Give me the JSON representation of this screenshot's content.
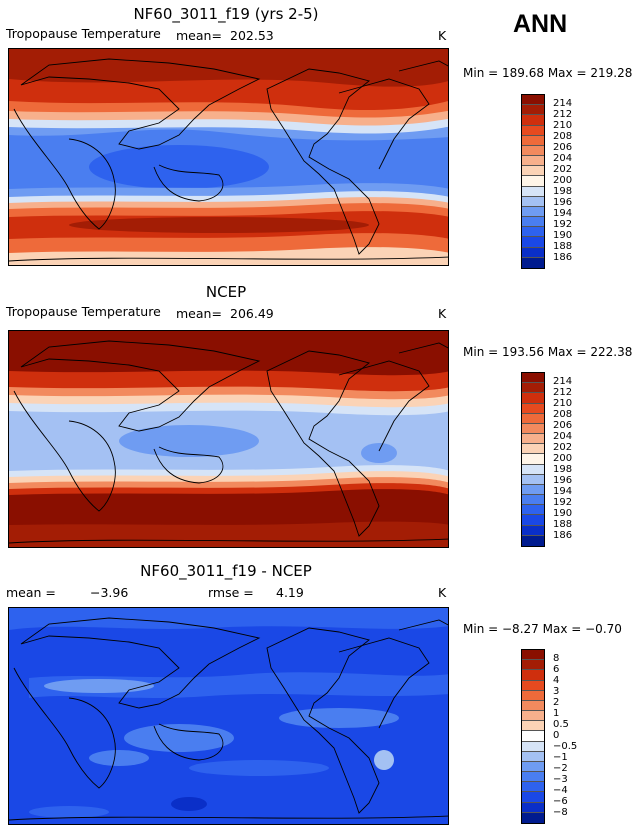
{
  "season": "ANN",
  "colors": {
    "absolute": [
      "#001b8f",
      "#0a2fc8",
      "#1a48e6",
      "#2e62ee",
      "#4a7ef0",
      "#6f9cf2",
      "#a4c1f3",
      "#d6e4f7",
      "#fff5e8",
      "#fbd3b6",
      "#f7b08c",
      "#f28a5e",
      "#ee6a3a",
      "#e64a1f",
      "#cf2f0d",
      "#a31d05",
      "#8a0f00"
    ],
    "difference": [
      "#001b8f",
      "#0a2fc8",
      "#1a48e6",
      "#2e62ee",
      "#4a7ef0",
      "#6f9cf2",
      "#a4c1f3",
      "#d6e4f7",
      "#ffffff",
      "#fbd3b6",
      "#f7b08c",
      "#f28a5e",
      "#ee6a3a",
      "#e64a1f",
      "#cf2f0d",
      "#a31d05",
      "#8a0f00"
    ]
  },
  "chart_data": [
    {
      "type": "heatmap",
      "title": "NF60_3011_f19 (yrs 2-5)",
      "variable": "Tropopause Temperature",
      "mean_label": "mean=",
      "mean": "202.53",
      "units": "K",
      "min_label": "Min =",
      "min": "189.68",
      "max_label": "Max =",
      "max": "219.28",
      "colorbar_labels": [
        "214",
        "212",
        "210",
        "208",
        "206",
        "204",
        "202",
        "200",
        "198",
        "196",
        "194",
        "192",
        "190",
        "188",
        "186"
      ]
    },
    {
      "type": "heatmap",
      "title": "NCEP",
      "variable": "Tropopause Temperature",
      "mean_label": "mean=",
      "mean": "206.49",
      "units": "K",
      "min_label": "Min =",
      "min": "193.56",
      "max_label": "Max =",
      "max": "222.38",
      "colorbar_labels": [
        "214",
        "212",
        "210",
        "208",
        "206",
        "204",
        "202",
        "200",
        "198",
        "196",
        "194",
        "192",
        "190",
        "188",
        "186"
      ]
    },
    {
      "type": "heatmap",
      "title": "NF60_3011_f19 - NCEP",
      "mean_label": "mean =",
      "mean": "−3.96",
      "rmse_label": "rmse =",
      "rmse": "4.19",
      "units": "K",
      "min_label": "Min =",
      "min": "−8.27",
      "max_label": "Max =",
      "max": "−0.70",
      "colorbar_labels": [
        "8",
        "6",
        "4",
        "3",
        "2",
        "1",
        "0.5",
        "0",
        "−0.5",
        "−1",
        "−2",
        "−3",
        "−4",
        "−6",
        "−8"
      ]
    }
  ]
}
